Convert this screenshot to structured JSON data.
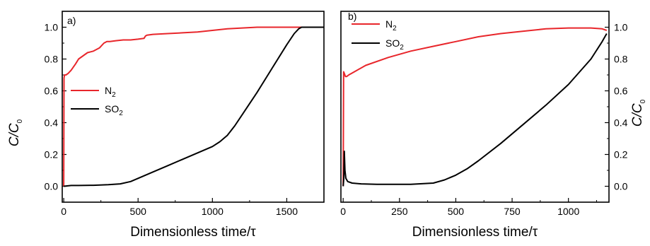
{
  "figure": {
    "ylabel_left": "C/C",
    "ylabel_left_sub": "0",
    "ylabel_right": "C/C",
    "ylabel_right_sub": "0"
  },
  "chart_data": [
    {
      "type": "line",
      "panel_label": "a)",
      "xlabel": "Dimensionless time/τ",
      "ylabel": "C/C0",
      "xlim": [
        -10,
        1750
      ],
      "ylim": [
        -0.1,
        1.1
      ],
      "xticks": [
        0,
        500,
        1000,
        1500
      ],
      "xtick_labels": [
        "0",
        "500",
        "1000",
        "1500"
      ],
      "yticks": [
        0.0,
        0.2,
        0.4,
        0.6,
        0.8,
        1.0
      ],
      "ytick_labels": [
        "0.0",
        "0.2",
        "0.4",
        "0.6",
        "0.8",
        "1.0"
      ],
      "legend_position": "middle-left",
      "series": [
        {
          "name": "N",
          "name_sub": "2",
          "color": "#e8262b",
          "x": [
            0,
            2,
            5,
            15,
            30,
            50,
            80,
            100,
            130,
            160,
            200,
            240,
            270,
            290,
            310,
            350,
            400,
            450,
            500,
            540,
            550,
            560,
            600,
            700,
            800,
            900,
            1000,
            1100,
            1200,
            1300,
            1400,
            1500,
            1600,
            1700,
            1750
          ],
          "y": [
            0.0,
            0.68,
            0.7,
            0.7,
            0.71,
            0.73,
            0.77,
            0.8,
            0.82,
            0.84,
            0.85,
            0.87,
            0.9,
            0.91,
            0.91,
            0.915,
            0.92,
            0.92,
            0.925,
            0.93,
            0.945,
            0.95,
            0.955,
            0.96,
            0.965,
            0.97,
            0.98,
            0.99,
            0.995,
            1.0,
            1.0,
            1.0,
            1.0,
            1.0,
            1.0
          ]
        },
        {
          "name": "SO",
          "name_sub": "2",
          "color": "#000000",
          "x": [
            0,
            50,
            100,
            200,
            300,
            380,
            450,
            500,
            550,
            600,
            700,
            800,
            900,
            1000,
            1050,
            1100,
            1150,
            1200,
            1300,
            1400,
            1500,
            1550,
            1580,
            1600,
            1650,
            1700,
            1750
          ],
          "y": [
            0.0,
            0.005,
            0.005,
            0.006,
            0.01,
            0.015,
            0.03,
            0.05,
            0.07,
            0.09,
            0.13,
            0.17,
            0.21,
            0.25,
            0.28,
            0.32,
            0.38,
            0.45,
            0.59,
            0.74,
            0.89,
            0.96,
            0.99,
            1.0,
            1.0,
            1.0,
            1.0
          ]
        }
      ]
    },
    {
      "type": "line",
      "panel_label": "b)",
      "xlabel": "Dimensionless time/τ",
      "ylabel": "C/C0",
      "xlim": [
        -10,
        1180
      ],
      "ylim": [
        -0.1,
        1.1
      ],
      "xticks": [
        0,
        250,
        500,
        750,
        1000
      ],
      "xtick_labels": [
        "0",
        "250",
        "500",
        "750",
        "1000"
      ],
      "yticks": [
        0.0,
        0.2,
        0.4,
        0.6,
        0.8,
        1.0
      ],
      "ytick_labels": [
        "0.0",
        "0.2",
        "0.4",
        "0.6",
        "0.8",
        "1.0"
      ],
      "legend_position": "top-left",
      "series": [
        {
          "name": "N",
          "name_sub": "2",
          "color": "#e8262b",
          "x": [
            0,
            2,
            5,
            10,
            15,
            25,
            50,
            100,
            200,
            300,
            400,
            500,
            600,
            700,
            800,
            900,
            1000,
            1100,
            1150,
            1170
          ],
          "y": [
            0.0,
            0.72,
            0.71,
            0.69,
            0.69,
            0.7,
            0.72,
            0.76,
            0.81,
            0.85,
            0.88,
            0.91,
            0.94,
            0.96,
            0.975,
            0.99,
            0.995,
            0.995,
            0.99,
            0.98
          ]
        },
        {
          "name": "SO",
          "name_sub": "2",
          "color": "#000000",
          "x": [
            0,
            3,
            5,
            8,
            12,
            20,
            40,
            80,
            150,
            300,
            400,
            450,
            500,
            550,
            600,
            700,
            800,
            900,
            1000,
            1050,
            1100,
            1150,
            1170
          ],
          "y": [
            0.0,
            0.05,
            0.22,
            0.1,
            0.05,
            0.03,
            0.02,
            0.015,
            0.012,
            0.012,
            0.02,
            0.04,
            0.07,
            0.11,
            0.16,
            0.27,
            0.39,
            0.51,
            0.64,
            0.72,
            0.8,
            0.91,
            0.96
          ]
        }
      ]
    }
  ]
}
